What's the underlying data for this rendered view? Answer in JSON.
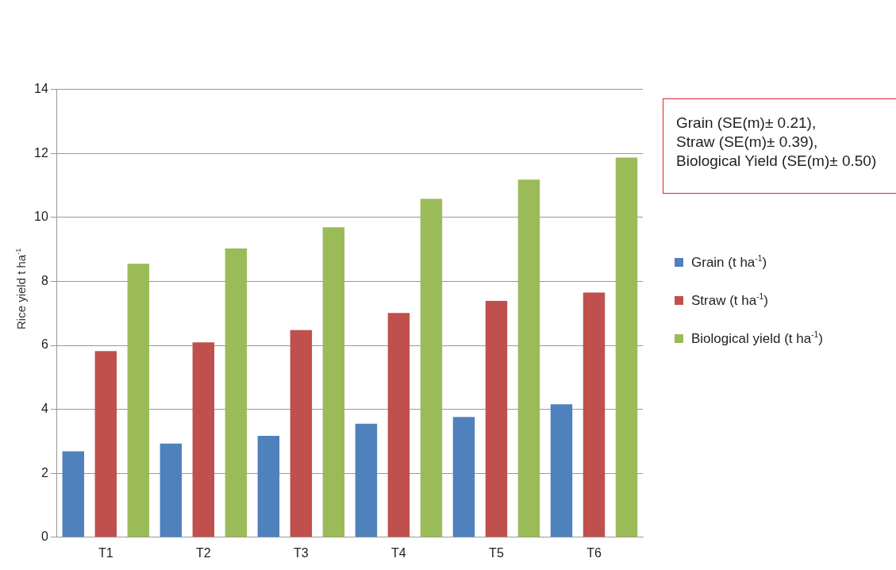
{
  "chart_data": {
    "type": "bar",
    "ylabel": "Rice yield t ha$^{-1}$",
    "categories": [
      "T1",
      "T2",
      "T3",
      "T4",
      "T5",
      "T6"
    ],
    "series": [
      {
        "name": "Grain (t ha$^{-1}$)",
        "color": "#4f81bd",
        "values": [
          2.69,
          2.93,
          3.17,
          3.55,
          3.76,
          4.16
        ]
      },
      {
        "name": "Straw (t ha$^{-1}$)",
        "color": "#c0504d",
        "values": [
          5.82,
          6.09,
          6.48,
          7.01,
          7.39,
          7.65
        ]
      },
      {
        "name": "Biological yield (t ha$^{-1}$)",
        "color": "#9bbb59",
        "values": [
          8.55,
          9.03,
          9.69,
          10.58,
          11.18,
          11.87
        ]
      }
    ],
    "ylim": [
      0,
      14
    ],
    "yticks": [
      0,
      2,
      4,
      6,
      8,
      10,
      12,
      14
    ],
    "grid": "y",
    "legend": "right",
    "annotations": [
      "Grain (SE(m)± 0.21),\nStraw (SE(m)± 0.39),\nBiological Yield (SE(m)± 0.50)"
    ]
  }
}
